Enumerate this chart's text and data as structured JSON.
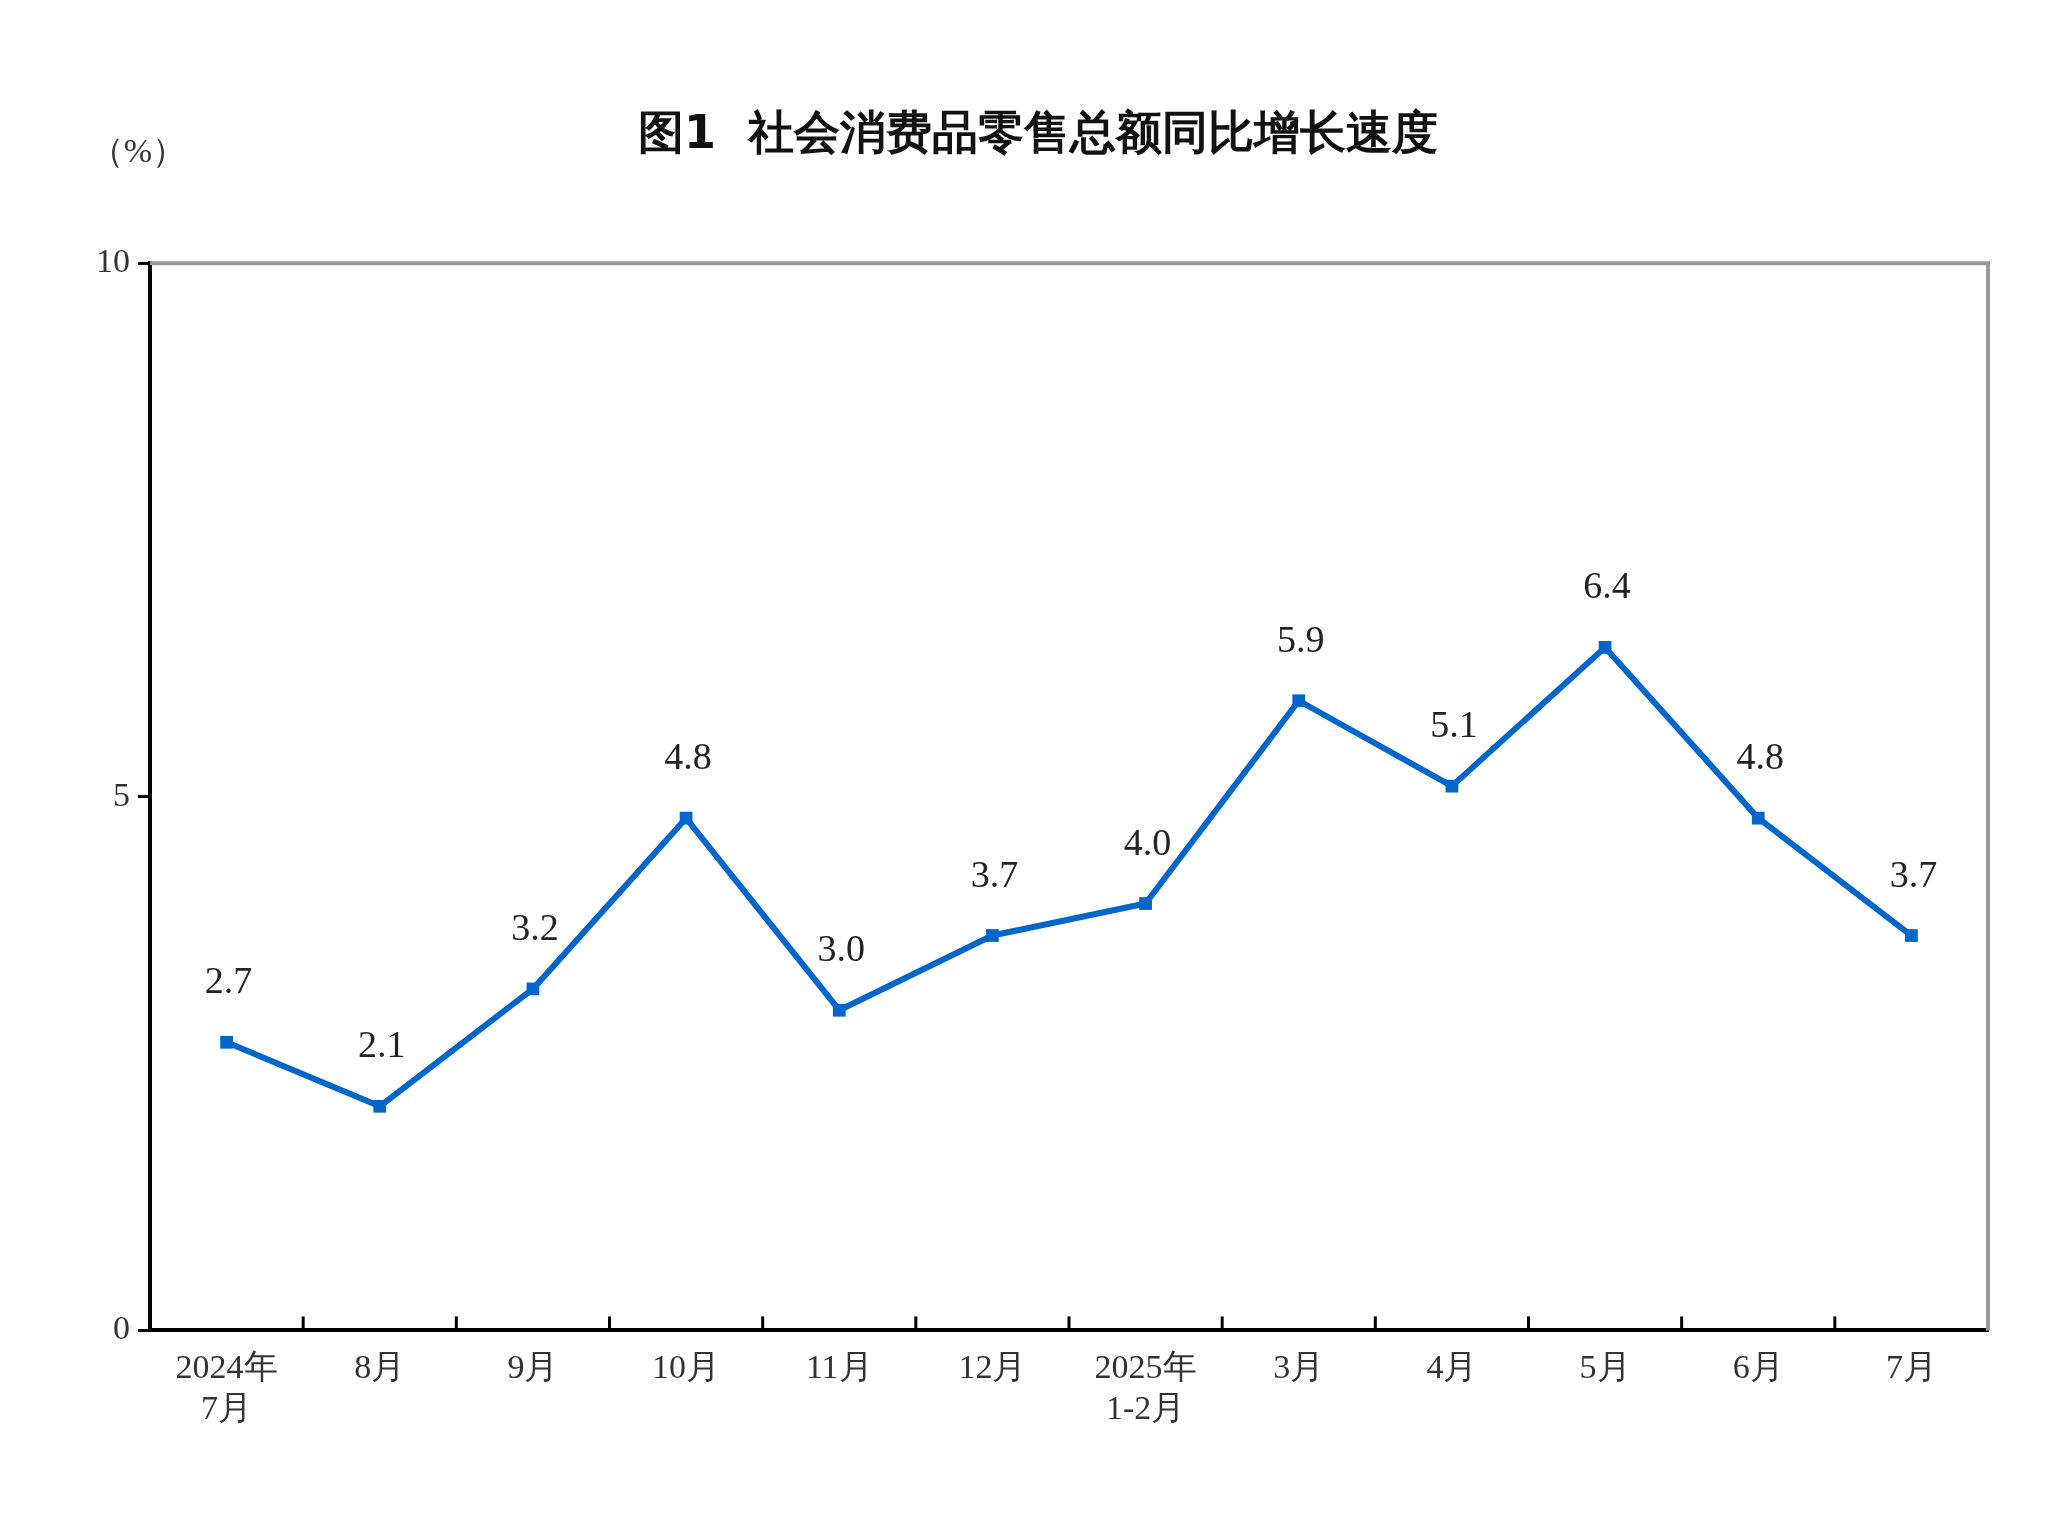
{
  "chart_data": {
    "type": "line",
    "title": "图1  社会消费品零售总额同比增长速度",
    "ylabel": "（%）",
    "categories": [
      "2024年\n7月",
      "8月",
      "9月",
      "10月",
      "11月",
      "12月",
      "2025年\n1-2月",
      "3月",
      "4月",
      "5月",
      "6月",
      "7月"
    ],
    "series": [
      {
        "color": "#0066cc",
        "values": [
          2.7,
          2.1,
          3.2,
          4.8,
          3.0,
          3.7,
          4.0,
          5.9,
          5.1,
          6.4,
          4.8,
          3.7
        ],
        "value_labels": [
          "2.7",
          "2.1",
          "3.2",
          "4.8",
          "3.0",
          "3.7",
          "4.0",
          "5.9",
          "5.1",
          "6.4",
          "4.8",
          "3.7"
        ]
      }
    ],
    "ylim": [
      0,
      10
    ],
    "yticks": [
      0,
      5,
      10
    ],
    "grid": false,
    "legend": false,
    "marker": "square",
    "line_style": "solid"
  }
}
